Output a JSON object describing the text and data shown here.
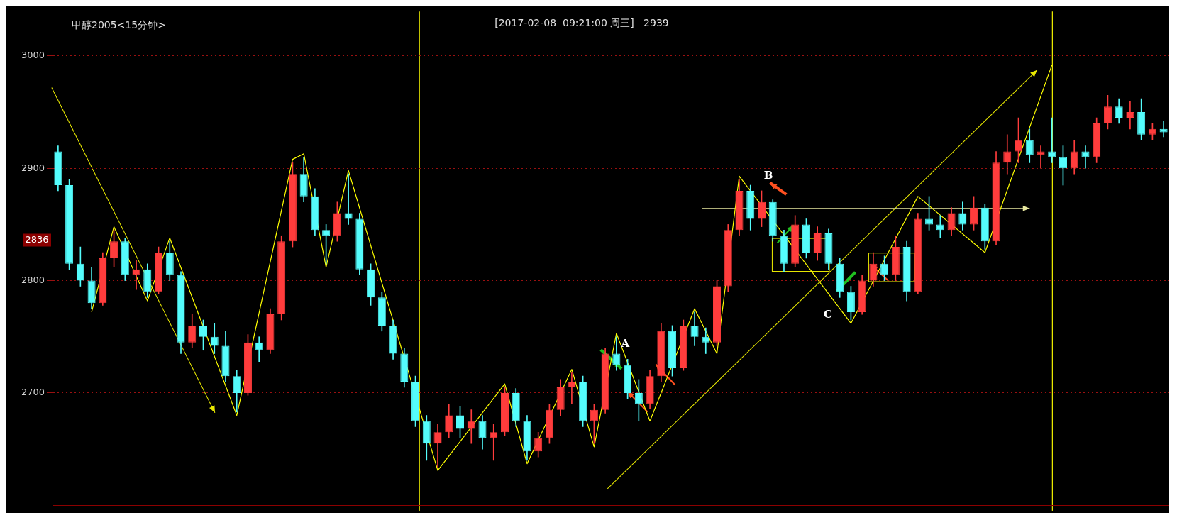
{
  "chart_data": {
    "type": "candlestick",
    "title": "甲醇2005<15分钟>",
    "subtitle": "[2017-02-08  09:21:00 周三]   2939",
    "categories": [
      null,
      null,
      null,
      null,
      null,
      null,
      null,
      null,
      null,
      null,
      null,
      null,
      null,
      null,
      null,
      null,
      null,
      null,
      null,
      null,
      null,
      null,
      null,
      null,
      null,
      null,
      null,
      null,
      null,
      null,
      null,
      null,
      null,
      null,
      null,
      null,
      null,
      null,
      null,
      null,
      null,
      null,
      null,
      null,
      null,
      null,
      null,
      null,
      null,
      null,
      null,
      null,
      null,
      null,
      null,
      null,
      null,
      null,
      null,
      null,
      null,
      null,
      null,
      null,
      null,
      null,
      null,
      null,
      null,
      null,
      null,
      null,
      null,
      null,
      null,
      null,
      null,
      null,
      null,
      null,
      null,
      null,
      null,
      null,
      null,
      null,
      null,
      null,
      null,
      null,
      null,
      null,
      null,
      null,
      null,
      null,
      null,
      null,
      null,
      null
    ],
    "ohlc": [
      [
        2915,
        2920,
        2880,
        2885
      ],
      [
        2885,
        2890,
        2810,
        2815
      ],
      [
        2815,
        2830,
        2795,
        2800
      ],
      [
        2800,
        2812,
        2775,
        2780
      ],
      [
        2780,
        2825,
        2778,
        2820
      ],
      [
        2820,
        2845,
        2812,
        2835
      ],
      [
        2835,
        2838,
        2800,
        2805
      ],
      [
        2805,
        2818,
        2792,
        2810
      ],
      [
        2810,
        2815,
        2785,
        2790
      ],
      [
        2790,
        2830,
        2788,
        2825
      ],
      [
        2825,
        2835,
        2800,
        2805
      ],
      [
        2805,
        2808,
        2735,
        2745
      ],
      [
        2745,
        2770,
        2740,
        2760
      ],
      [
        2760,
        2765,
        2738,
        2750
      ],
      [
        2750,
        2762,
        2735,
        2742
      ],
      [
        2742,
        2755,
        2710,
        2715
      ],
      [
        2715,
        2720,
        2683,
        2700
      ],
      [
        2700,
        2752,
        2698,
        2745
      ],
      [
        2745,
        2750,
        2728,
        2738
      ],
      [
        2738,
        2775,
        2735,
        2770
      ],
      [
        2770,
        2840,
        2765,
        2835
      ],
      [
        2835,
        2905,
        2830,
        2895
      ],
      [
        2895,
        2910,
        2870,
        2875
      ],
      [
        2875,
        2882,
        2840,
        2845
      ],
      [
        2845,
        2850,
        2815,
        2840
      ],
      [
        2840,
        2870,
        2835,
        2860
      ],
      [
        2860,
        2895,
        2850,
        2855
      ],
      [
        2855,
        2860,
        2805,
        2810
      ],
      [
        2810,
        2815,
        2778,
        2785
      ],
      [
        2785,
        2790,
        2755,
        2760
      ],
      [
        2760,
        2765,
        2730,
        2735
      ],
      [
        2735,
        2740,
        2705,
        2710
      ],
      [
        2710,
        2715,
        2670,
        2675
      ],
      [
        2675,
        2680,
        2640,
        2655
      ],
      [
        2655,
        2672,
        2634,
        2665
      ],
      [
        2665,
        2690,
        2660,
        2680
      ],
      [
        2680,
        2688,
        2660,
        2668
      ],
      [
        2668,
        2685,
        2655,
        2675
      ],
      [
        2675,
        2680,
        2650,
        2660
      ],
      [
        2660,
        2672,
        2640,
        2665
      ],
      [
        2665,
        2705,
        2662,
        2700
      ],
      [
        2700,
        2704,
        2670,
        2675
      ],
      [
        2675,
        2680,
        2640,
        2648
      ],
      [
        2648,
        2665,
        2643,
        2660
      ],
      [
        2660,
        2690,
        2655,
        2685
      ],
      [
        2685,
        2712,
        2680,
        2705
      ],
      [
        2705,
        2718,
        2690,
        2710
      ],
      [
        2710,
        2715,
        2670,
        2675
      ],
      [
        2675,
        2690,
        2655,
        2685
      ],
      [
        2685,
        2740,
        2682,
        2735
      ],
      [
        2735,
        2750,
        2720,
        2725
      ],
      [
        2725,
        2730,
        2695,
        2700
      ],
      [
        2700,
        2712,
        2675,
        2690
      ],
      [
        2690,
        2720,
        2686,
        2715
      ],
      [
        2715,
        2762,
        2710,
        2755
      ],
      [
        2755,
        2760,
        2715,
        2722
      ],
      [
        2722,
        2765,
        2720,
        2760
      ],
      [
        2760,
        2772,
        2742,
        2750
      ],
      [
        2750,
        2758,
        2735,
        2745
      ],
      [
        2745,
        2800,
        2742,
        2795
      ],
      [
        2795,
        2850,
        2790,
        2845
      ],
      [
        2845,
        2890,
        2840,
        2880
      ],
      [
        2880,
        2885,
        2845,
        2855
      ],
      [
        2855,
        2880,
        2848,
        2870
      ],
      [
        2870,
        2872,
        2835,
        2840
      ],
      [
        2840,
        2845,
        2808,
        2815
      ],
      [
        2815,
        2858,
        2812,
        2850
      ],
      [
        2850,
        2855,
        2820,
        2825
      ],
      [
        2825,
        2848,
        2818,
        2842
      ],
      [
        2842,
        2846,
        2810,
        2815
      ],
      [
        2815,
        2820,
        2785,
        2790
      ],
      [
        2790,
        2795,
        2765,
        2772
      ],
      [
        2772,
        2805,
        2770,
        2800
      ],
      [
        2800,
        2825,
        2795,
        2815
      ],
      [
        2815,
        2822,
        2800,
        2805
      ],
      [
        2805,
        2840,
        2800,
        2830
      ],
      [
        2830,
        2835,
        2782,
        2790
      ],
      [
        2790,
        2860,
        2788,
        2855
      ],
      [
        2855,
        2875,
        2845,
        2850
      ],
      [
        2850,
        2858,
        2838,
        2845
      ],
      [
        2845,
        2865,
        2840,
        2860
      ],
      [
        2860,
        2870,
        2845,
        2850
      ],
      [
        2850,
        2875,
        2845,
        2865
      ],
      [
        2865,
        2868,
        2828,
        2835
      ],
      [
        2835,
        2915,
        2832,
        2905
      ],
      [
        2905,
        2930,
        2895,
        2915
      ],
      [
        2915,
        2945,
        2905,
        2925
      ],
      [
        2925,
        2935,
        2905,
        2912
      ],
      [
        2912,
        2920,
        2900,
        2915
      ],
      [
        2915,
        2945,
        2905,
        2910
      ],
      [
        2910,
        2920,
        2885,
        2900
      ],
      [
        2900,
        2925,
        2895,
        2915
      ],
      [
        2915,
        2920,
        2900,
        2910
      ],
      [
        2910,
        2945,
        2905,
        2940
      ],
      [
        2940,
        2965,
        2935,
        2955
      ],
      [
        2955,
        2962,
        2940,
        2945
      ],
      [
        2945,
        2960,
        2935,
        2950
      ],
      [
        2950,
        2962,
        2925,
        2930
      ],
      [
        2930,
        2940,
        2925,
        2935
      ],
      [
        2935,
        2942,
        2928,
        2932
      ]
    ],
    "series": [
      {
        "type": "line",
        "color": "#ffff00",
        "values": [
          null,
          null,
          null,
          2772,
          null,
          2848,
          null,
          null,
          2782,
          null,
          2838,
          null,
          null,
          null,
          null,
          null,
          2680,
          null,
          null,
          null,
          null,
          2908,
          2913,
          null,
          2812,
          null,
          2898,
          null,
          null,
          null,
          null,
          null,
          null,
          null,
          2631,
          null,
          null,
          null,
          null,
          null,
          2708,
          null,
          2637,
          null,
          null,
          null,
          2721,
          null,
          2652,
          null,
          2753,
          null,
          null,
          2675,
          null,
          null,
          null,
          2775,
          null,
          2735,
          null,
          2893,
          null,
          null,
          null,
          null,
          null,
          null,
          null,
          null,
          null,
          2762,
          null,
          null,
          null,
          null,
          null,
          2875,
          null,
          null,
          null,
          null,
          null,
          2825,
          null,
          null,
          null,
          null,
          null,
          2992,
          null,
          null,
          null,
          null,
          null,
          null,
          null,
          null,
          null,
          null
        ]
      }
    ],
    "ylim": [
      2600,
      3038
    ],
    "yticks": [
      2700,
      2800,
      2900,
      3000
    ],
    "grid": "y",
    "legend": false,
    "annotations": [
      {
        "text": "2836",
        "y": 2836
      },
      "A",
      "B",
      "C"
    ]
  }
}
